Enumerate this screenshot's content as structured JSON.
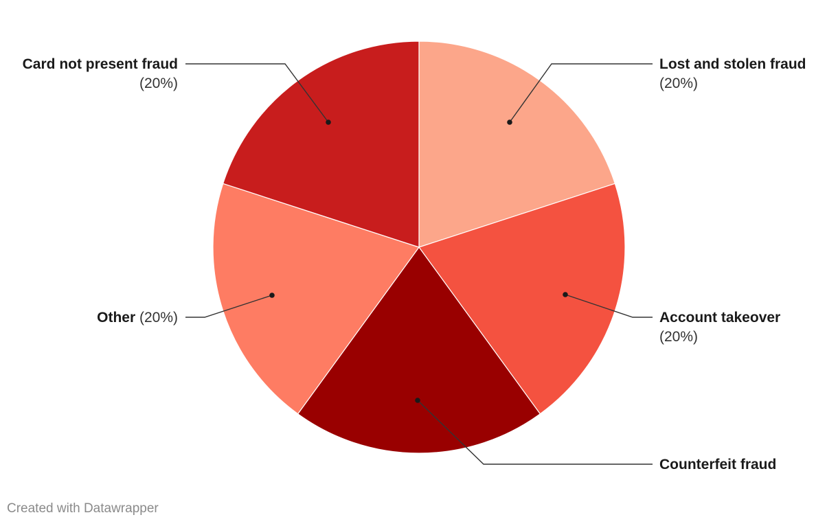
{
  "chart_data": {
    "type": "pie",
    "title": "",
    "slices": [
      {
        "name": "Lost and stolen fraud",
        "value": 20,
        "label": "(20%)",
        "color": "#fca68a"
      },
      {
        "name": "Account takeover",
        "value": 20,
        "label": "(20%)",
        "color": "#f45240"
      },
      {
        "name": "Counterfeit fraud",
        "value": 20,
        "label": "",
        "color": "#990000"
      },
      {
        "name": "Other",
        "value": 20,
        "label": "(20%)",
        "color": "#fe7c63"
      },
      {
        "name": "Card not present fraud",
        "value": 20,
        "label": "(20%)",
        "color": "#c81d1d"
      }
    ],
    "legend": "none"
  },
  "credit": "Created with Datawrapper"
}
